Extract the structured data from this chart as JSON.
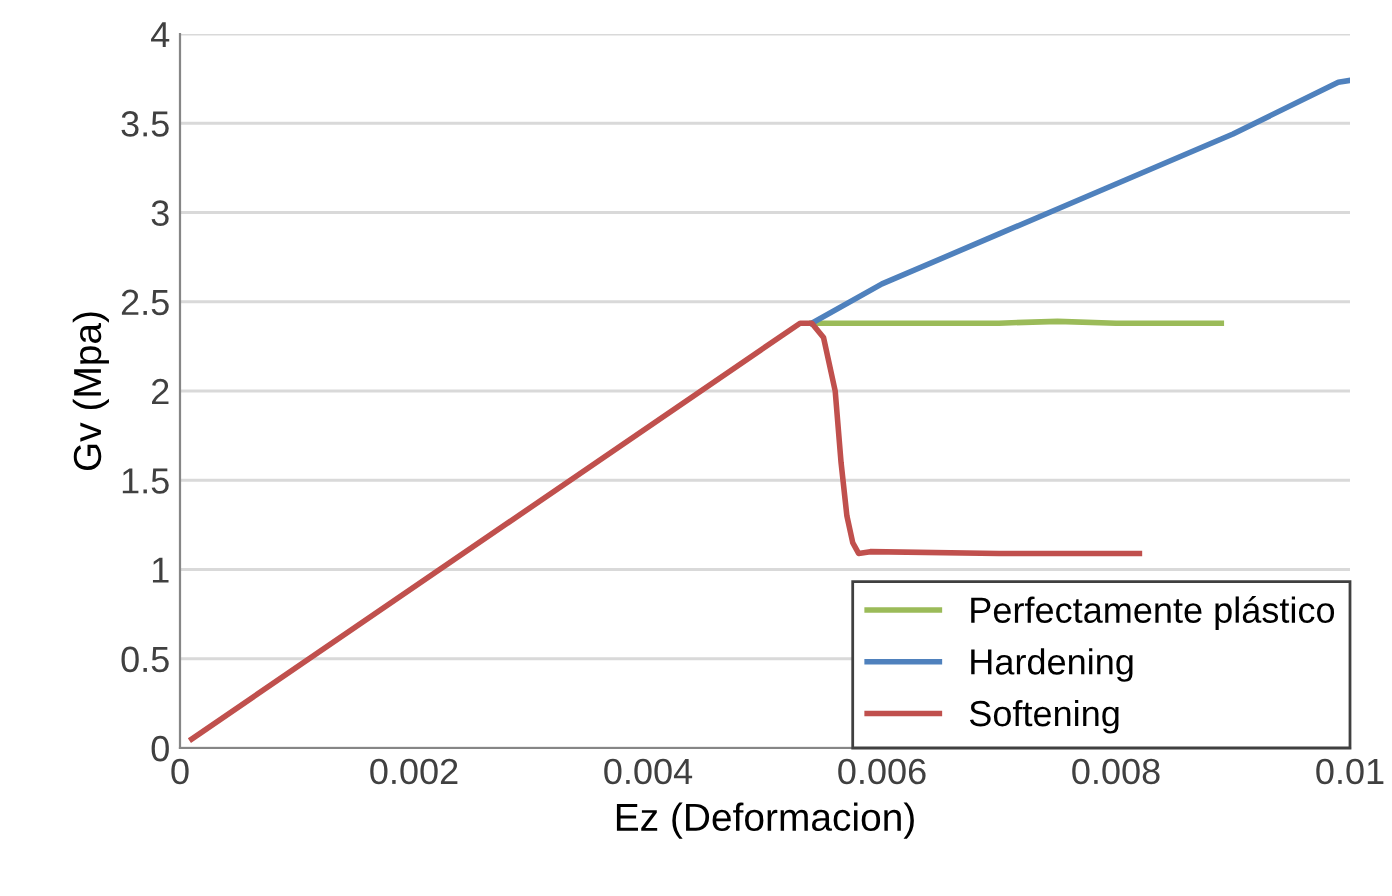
{
  "chart_data": {
    "type": "line",
    "xlabel": "Ez (Deformacion)",
    "ylabel": "Gv (Mpa)",
    "xlim": [
      0,
      0.01
    ],
    "xticks": [
      {
        "value": 0,
        "label": "0"
      },
      0.002,
      0.004,
      0.006,
      0.008,
      {
        "value": 0.01,
        "label": "0.01"
      }
    ],
    "ylim": [
      0,
      4
    ],
    "yticks": [
      {
        "value": 0,
        "label": "0"
      },
      0.5,
      {
        "value": 1,
        "label": "1"
      },
      1.5,
      {
        "value": 2,
        "label": "2"
      },
      2.5,
      {
        "value": 3,
        "label": "3"
      },
      3.5,
      {
        "value": 4,
        "label": "4"
      }
    ],
    "grid": "y",
    "legend": "bottom right",
    "marker": "none",
    "line_style": "solid",
    "series": [
      {
        "name": "Perfectamente plástico",
        "color": "#9bbb59",
        "x": [
          0.0054,
          0.006,
          0.007,
          0.0075,
          0.008,
          0.0089
        ],
        "values": [
          2.38,
          2.38,
          2.38,
          2.39,
          2.38,
          2.38
        ]
      },
      {
        "name": "Hardening",
        "color": "#4f81bd",
        "x": [
          0.0054,
          0.006,
          0.007,
          0.008,
          0.009,
          0.0099,
          0.01
        ],
        "values": [
          2.38,
          2.6,
          2.88,
          3.16,
          3.44,
          3.73,
          3.74
        ]
      },
      {
        "name": "Softening",
        "color": "#c0504d",
        "x": [
          0.0001,
          0.0053,
          0.0054,
          0.0055,
          0.0056,
          0.00565,
          0.0057,
          0.00575,
          0.0058,
          0.0059,
          0.007,
          0.0082
        ],
        "values": [
          0.05,
          2.38,
          2.38,
          2.3,
          2.0,
          1.6,
          1.3,
          1.15,
          1.09,
          1.1,
          1.09,
          1.09
        ]
      }
    ]
  }
}
